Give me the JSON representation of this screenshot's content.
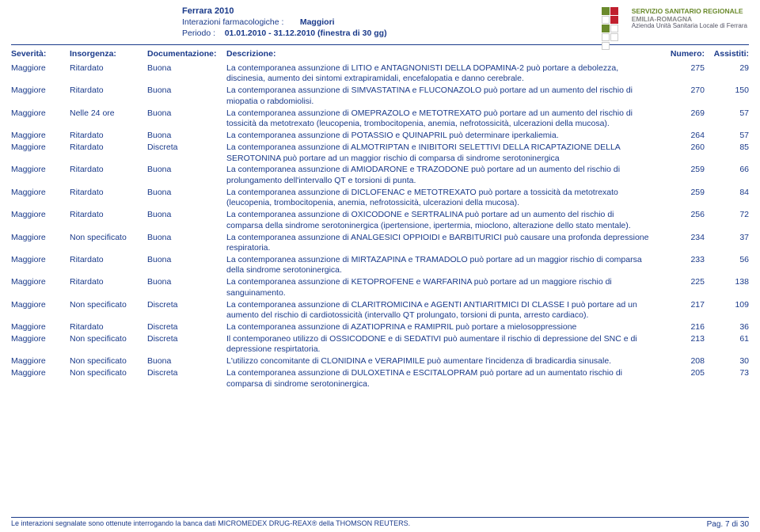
{
  "header": {
    "title": "Ferrara 2010",
    "line1_label": "Interazioni farmacologiche :",
    "line1_value": "Maggiori",
    "line2_label": "Periodo :",
    "line2_value": "01.01.2010 - 31.12.2010 (finestra di 30  gg)"
  },
  "logo": {
    "l1": "SERVIZIO SANITARIO REGIONALE",
    "l2": "EMILIA-ROMAGNA",
    "l3": "Azienda Unità Sanitaria Locale di Ferrara",
    "colors": [
      "#6a8a2c",
      "#c01f2e",
      "#ffffff",
      "#c01f2e",
      "#6a8a2c",
      "#ffffff",
      "#ffffff",
      "#ffffff",
      "#ffffff"
    ]
  },
  "columns": {
    "severita": "Severità:",
    "insorgenza": "Insorgenza:",
    "documentazione": "Documentazione:",
    "descrizione": "Descrizione:",
    "numero": "Numero:",
    "assistiti": "Assistiti:"
  },
  "rows": [
    {
      "sev": "Maggiore",
      "ins": "Ritardato",
      "doc": "Buona",
      "desc": "La contemporanea assunzione di LITIO e ANTAGNONISTI DELLA DOPAMINA-2 può portare a debolezza, discinesia, aumento dei sintomi extrapiramidali, encefalopatia e danno cerebrale.",
      "num": "275",
      "ass": "29"
    },
    {
      "sev": "Maggiore",
      "ins": "Ritardato",
      "doc": "Buona",
      "desc": "La contemporanea assunzione di SIMVASTATINA e FLUCONAZOLO può portare ad un aumento del rischio di miopatia o rabdomiolisi.",
      "num": "270",
      "ass": "150"
    },
    {
      "sev": "Maggiore",
      "ins": "Nelle 24 ore",
      "doc": "Buona",
      "desc": "La contemporanea assunzione di OMEPRAZOLO e METOTREXATO può portare ad un aumento del rischio di tossicità da metotrexato (leucopenia, trombocitopenia, anemia, nefrotossicità, ulcerazioni della mucosa).",
      "num": "269",
      "ass": "57"
    },
    {
      "sev": "Maggiore",
      "ins": "Ritardato",
      "doc": "Buona",
      "desc": "La contemporanea assunzione di POTASSIO e QUINAPRIL può determinare iperkaliemia.",
      "num": "264",
      "ass": "57"
    },
    {
      "sev": "Maggiore",
      "ins": "Ritardato",
      "doc": "Discreta",
      "desc": "La contemporanea assunzione di ALMOTRIPTAN e INIBITORI SELETTIVI DELLA RICAPTAZIONE DELLA SEROTONINA può portare ad un maggior rischio di comparsa di sindrome serotoninergica",
      "num": "260",
      "ass": "85"
    },
    {
      "sev": "Maggiore",
      "ins": "Ritardato",
      "doc": "Buona",
      "desc": "La contemporanea assunzione di AMIODARONE e TRAZODONE può portare ad un aumento del rischio di prolungamento dell'intervallo QT e torsioni di punta.",
      "num": "259",
      "ass": "66"
    },
    {
      "sev": "Maggiore",
      "ins": "Ritardato",
      "doc": "Buona",
      "desc": "La contemporanea assunzione di DICLOFENAC e METOTREXATO può portare a tossicità da metotrexato (leucopenia, trombocitopenia, anemia, nefrotossicità, ulcerazioni della mucosa).",
      "num": "259",
      "ass": "84"
    },
    {
      "sev": "Maggiore",
      "ins": "Ritardato",
      "doc": "Buona",
      "desc": "La contemporanea assunzione di OXICODONE e SERTRALINA può portare ad un aumento del rischio di comparsa della sindrome serotoninergica (ipertensione, ipertermia, mioclono, alterazione dello stato mentale).",
      "num": "256",
      "ass": "72"
    },
    {
      "sev": "Maggiore",
      "ins": "Non specificato",
      "doc": "Buona",
      "desc": "La contemporanea assunzione di ANALGESICI OPPIOIDI e BARBITURICI può causare una profonda depressione respiratoria.",
      "num": "234",
      "ass": "37"
    },
    {
      "sev": "Maggiore",
      "ins": "Ritardato",
      "doc": "Buona",
      "desc": "La contemporanea assunzione di MIRTAZAPINA e TRAMADOLO può portare ad un maggior rischio di comparsa della sindrome serotoninergica.",
      "num": "233",
      "ass": "56"
    },
    {
      "sev": "Maggiore",
      "ins": "Ritardato",
      "doc": "Buona",
      "desc": "La contemporanea assunzione di KETOPROFENE e WARFARINA può portare ad un maggiore rischio di sanguinamento.",
      "num": "225",
      "ass": "138"
    },
    {
      "sev": "Maggiore",
      "ins": "Non specificato",
      "doc": "Discreta",
      "desc": "La contemporanea assunzione di CLARITROMICINA e AGENTI ANTIARITMICI DI CLASSE I può portare ad un aumento del rischio di cardiotossicità (intervallo QT prolungato, torsioni di punta, arresto cardiaco).",
      "num": "217",
      "ass": "109"
    },
    {
      "sev": "Maggiore",
      "ins": "Ritardato",
      "doc": "Discreta",
      "desc": "La contemporanea assunzione di AZATIOPRINA  e RAMIPRIL  può portare a mielosoppressione",
      "num": "216",
      "ass": "36"
    },
    {
      "sev": "Maggiore",
      "ins": "Non specificato",
      "doc": "Discreta",
      "desc": "Il contemporaneo utilizzo di OSSICODONE e di SEDATIVI può aumentare il rischio di depressione del SNC e di depressione respirtatoria.",
      "num": "213",
      "ass": "61"
    },
    {
      "sev": "Maggiore",
      "ins": "Non specificato",
      "doc": "Buona",
      "desc": "L'utilizzo concomitante di CLONIDINA e VERAPIMILE può aumentare l'incidenza di bradicardia sinusale.",
      "num": "208",
      "ass": "30"
    },
    {
      "sev": "Maggiore",
      "ins": "Non specificato",
      "doc": "Discreta",
      "desc": "La contemporanea assunzione di DULOXETINA e ESCITALOPRAM può portare ad un aumentato rischio di comparsa di sindrome serotoninergica.",
      "num": "205",
      "ass": "73"
    }
  ],
  "footer": {
    "note": "Le interazioni segnalate sono ottenute interrogando la banca dati MICROMEDEX DRUG-REAX® della THOMSON REUTERS.",
    "page": "Pag. 7 di 30"
  },
  "style": {
    "text_color": "#1a3a8a",
    "background": "#ffffff",
    "font_size_body": 10.5,
    "font_size_footer": 9,
    "col_widths": {
      "sev": 74,
      "ins": 98,
      "doc": 100,
      "num": 56,
      "ass": 56
    }
  }
}
